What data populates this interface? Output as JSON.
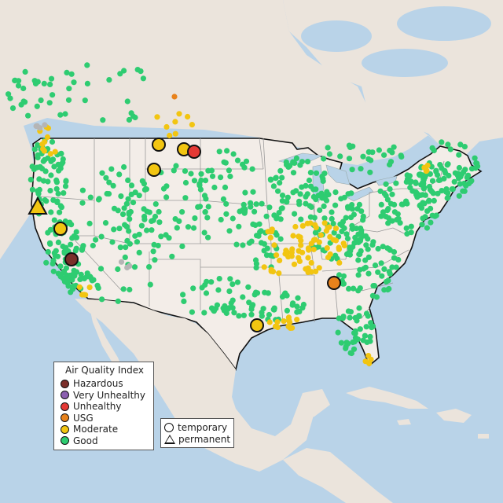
{
  "legend_aqi": {
    "title": "Air Quality Index",
    "items": [
      {
        "label": "Hazardous",
        "color": "#7b2f2a"
      },
      {
        "label": "Very Unhealthy",
        "color": "#8b5fb0"
      },
      {
        "label": "Unhealthy",
        "color": "#e53935"
      },
      {
        "label": "USG",
        "color": "#e8821c"
      },
      {
        "label": "Moderate",
        "color": "#f2c511"
      },
      {
        "label": "Good",
        "color": "#2ecc71"
      }
    ]
  },
  "legend_type": {
    "items": [
      {
        "label": "temporary",
        "shape": "circle"
      },
      {
        "label": "permanent",
        "shape": "triangle"
      }
    ]
  },
  "colors": {
    "water": "#b9d3e8",
    "land": "#ede6df",
    "us_land": "#f3ede8",
    "borders": "#111111"
  },
  "monitors": [
    {
      "cat": "Moderate",
      "shape": "circle",
      "region": "Montana east"
    },
    {
      "cat": "Moderate",
      "shape": "circle",
      "region": "Montana north"
    },
    {
      "cat": "Unhealthy",
      "shape": "circle",
      "region": "Montana north"
    },
    {
      "cat": "Moderate",
      "shape": "circle",
      "region": "Montana central"
    },
    {
      "cat": "Moderate",
      "shape": "triangle",
      "region": "N. California"
    },
    {
      "cat": "Moderate",
      "shape": "circle",
      "region": "N. California"
    },
    {
      "cat": "Hazardous",
      "shape": "circle",
      "region": "Central California"
    },
    {
      "cat": "USG",
      "shape": "circle",
      "region": "Georgia"
    },
    {
      "cat": "Moderate",
      "shape": "circle",
      "region": "Texas coast"
    }
  ]
}
